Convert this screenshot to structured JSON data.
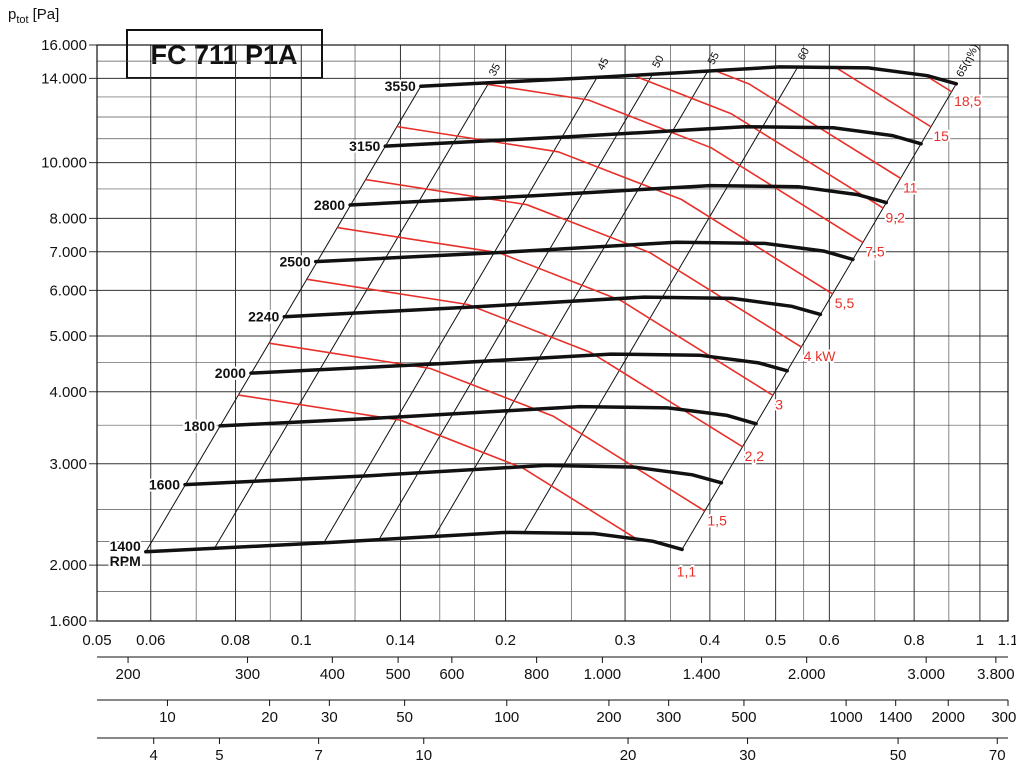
{
  "chart_data": {
    "type": "line",
    "title": "FC 711 P1A",
    "y_label": {
      "symbol": "p",
      "subscript": "tot",
      "unit": "[Pa]"
    },
    "x_scale": "log",
    "y_scale": "log",
    "grid": true,
    "xlim": [
      0.05,
      1.1
    ],
    "ylim": [
      1600,
      16000
    ],
    "xticks": [
      0.05,
      0.06,
      0.08,
      0.1,
      0.14,
      0.2,
      0.3,
      0.4,
      0.5,
      0.6,
      0.8,
      1,
      1.1
    ],
    "yticks": [
      {
        "value": 1600,
        "label": "1.600"
      },
      {
        "value": 2000,
        "label": "2.000"
      },
      {
        "value": 3000,
        "label": "3.000"
      },
      {
        "value": 4000,
        "label": "4.000"
      },
      {
        "value": 5000,
        "label": "5.000"
      },
      {
        "value": 6000,
        "label": "6.000"
      },
      {
        "value": 7000,
        "label": "7.000"
      },
      {
        "value": 8000,
        "label": "8.000"
      },
      {
        "value": 10000,
        "label": "10.000"
      },
      {
        "value": 14000,
        "label": "14.000"
      },
      {
        "value": 16000,
        "label": "16.000"
      }
    ],
    "xminor": [
      0.07,
      0.09,
      0.12,
      0.16,
      0.18,
      0.25,
      0.35,
      0.45,
      0.55,
      0.7,
      0.9
    ],
    "yminor": [
      1800,
      2200,
      2500,
      3500,
      4500,
      9000,
      11000,
      12000,
      13000,
      15000
    ],
    "rpm_unit": "RPM",
    "series": [
      {
        "name": "1400",
        "color": "#111111",
        "x": [
          0.059,
          0.11,
          0.2,
          0.27,
          0.33,
          0.364
        ],
        "values": [
          2110,
          2190,
          2280,
          2270,
          2200,
          2130
        ]
      },
      {
        "name": "1600",
        "color": "#111111",
        "x": [
          0.0674,
          0.126,
          0.229,
          0.309,
          0.377,
          0.416
        ],
        "values": [
          2760,
          2860,
          2980,
          2960,
          2870,
          2780
        ]
      },
      {
        "name": "1800",
        "color": "#111111",
        "x": [
          0.0759,
          0.141,
          0.257,
          0.347,
          0.424,
          0.468
        ],
        "values": [
          3490,
          3620,
          3770,
          3750,
          3640,
          3520
        ]
      },
      {
        "name": "2000",
        "color": "#111111",
        "x": [
          0.0843,
          0.157,
          0.286,
          0.386,
          0.472,
          0.52
        ],
        "values": [
          4310,
          4470,
          4650,
          4630,
          4490,
          4350
        ]
      },
      {
        "name": "2240",
        "color": "#111111",
        "x": [
          0.0944,
          0.176,
          0.32,
          0.432,
          0.528,
          0.582
        ],
        "values": [
          5400,
          5610,
          5840,
          5810,
          5630,
          5450
        ]
      },
      {
        "name": "2500",
        "color": "#111111",
        "x": [
          0.105,
          0.196,
          0.357,
          0.482,
          0.589,
          0.65
        ],
        "values": [
          6730,
          6980,
          7270,
          7240,
          7020,
          6790
        ]
      },
      {
        "name": "2800",
        "color": "#111111",
        "x": [
          0.118,
          0.22,
          0.4,
          0.54,
          0.66,
          0.728
        ],
        "values": [
          8440,
          8760,
          9120,
          9080,
          8800,
          8520
        ]
      },
      {
        "name": "3150",
        "color": "#111111",
        "x": [
          0.133,
          0.248,
          0.45,
          0.608,
          0.743,
          0.819
        ],
        "values": [
          10680,
          11090,
          11540,
          11490,
          11140,
          10780
        ]
      },
      {
        "name": "3550",
        "color": "#111111",
        "x": [
          0.15,
          0.279,
          0.507,
          0.685,
          0.837,
          0.923
        ],
        "values": [
          13570,
          14080,
          14660,
          14600,
          14150,
          13700
        ]
      }
    ],
    "power_curves": [
      {
        "name": "1,1",
        "color": "#e8302a",
        "x": [
          0.0806,
          0.14,
          0.212,
          0.355
        ],
        "values": [
          3950,
          3570,
          2950,
          2020
        ]
      },
      {
        "name": "1,5",
        "color": "#e8302a",
        "x": [
          0.0894,
          0.155,
          0.235,
          0.394
        ],
        "values": [
          4860,
          4390,
          3630,
          2480
        ]
      },
      {
        "name": "2,2",
        "color": "#e8302a",
        "x": [
          0.102,
          0.176,
          0.267,
          0.447
        ],
        "values": [
          6270,
          5670,
          4680,
          3210
        ]
      },
      {
        "name": "3",
        "color": "#e8302a",
        "x": [
          0.113,
          0.196,
          0.296,
          0.496
        ],
        "values": [
          7710,
          6970,
          5760,
          3940
        ]
      },
      {
        "name": "4 kW",
        "color": "#e8302a",
        "x": [
          0.124,
          0.215,
          0.326,
          0.546
        ],
        "values": [
          9350,
          8450,
          6980,
          4780
        ]
      },
      {
        "name": "5,5",
        "color": "#e8302a",
        "x": [
          0.138,
          0.239,
          0.363,
          0.607
        ],
        "values": [
          11550,
          10440,
          8630,
          5910
        ]
      },
      {
        "name": "7,5",
        "color": "#e8302a",
        "x": [
          0.153,
          0.265,
          0.402,
          0.673
        ],
        "values": [
          14200,
          12840,
          10610,
          7260
        ]
      },
      {
        "name": "9,2",
        "color": "#e8302a",
        "x": [
          0.164,
          0.284,
          0.43,
          0.721
        ],
        "values": [
          16280,
          14720,
          12160,
          8330
        ]
      },
      {
        "name": "11",
        "color": "#e8302a",
        "x": [
          0.174,
          0.302,
          0.457,
          0.765
        ],
        "values": [
          18340,
          16570,
          13690,
          9380
        ]
      },
      {
        "name": "15",
        "color": "#e8302a",
        "x": [
          0.193,
          0.334,
          0.506,
          0.848
        ],
        "values": [
          22540,
          20370,
          16840,
          11530
        ]
      },
      {
        "name": "18,5",
        "color": "#e8302a",
        "x": [
          0.206,
          0.359,
          0.543,
          0.91
        ],
        "values": [
          25920,
          23430,
          19360,
          13260
        ]
      }
    ],
    "efficiency_lines": [
      {
        "x": [
          0.059,
          0.15
        ],
        "values": [
          2110,
          13570
        ]
      },
      {
        "name": "35",
        "x": [
          0.0745,
          0.189
        ],
        "values": [
          2140,
          13760
        ]
      },
      {
        "name": "45",
        "x": [
          0.108,
          0.273
        ],
        "values": [
          2190,
          14080
        ]
      },
      {
        "name": "50",
        "x": [
          0.13,
          0.329
        ],
        "values": [
          2210,
          14210
        ]
      },
      {
        "name": "55",
        "x": [
          0.157,
          0.397
        ],
        "values": [
          2240,
          14400
        ]
      },
      {
        "name": "60",
        "x": [
          0.213,
          0.539
        ],
        "values": [
          2280,
          14660
        ]
      },
      {
        "name": "65(η%)",
        "x": [
          0.364,
          0.923
        ],
        "values": [
          2130,
          13700
        ]
      }
    ],
    "secondary_axes": [
      {
        "xlim": [
          180,
          3960
        ],
        "ticks": [
          200,
          300,
          400,
          500,
          600,
          800,
          {
            "value": 1000,
            "label": "1.000"
          },
          {
            "value": 1400,
            "label": "1.400"
          },
          {
            "value": 2000,
            "label": "2.000"
          },
          {
            "value": 3000,
            "label": "3.000"
          },
          {
            "value": 3800,
            "label": "3.800"
          }
        ]
      },
      {
        "xlim": [
          6.2,
          3000
        ],
        "ticks": [
          10,
          20,
          30,
          50,
          100,
          200,
          300,
          500,
          1000,
          1400,
          2000,
          3000
        ]
      },
      {
        "xlim": [
          3.3,
          72.6
        ],
        "ticks": [
          4,
          5,
          7,
          10,
          20,
          30,
          50,
          70
        ]
      }
    ]
  }
}
